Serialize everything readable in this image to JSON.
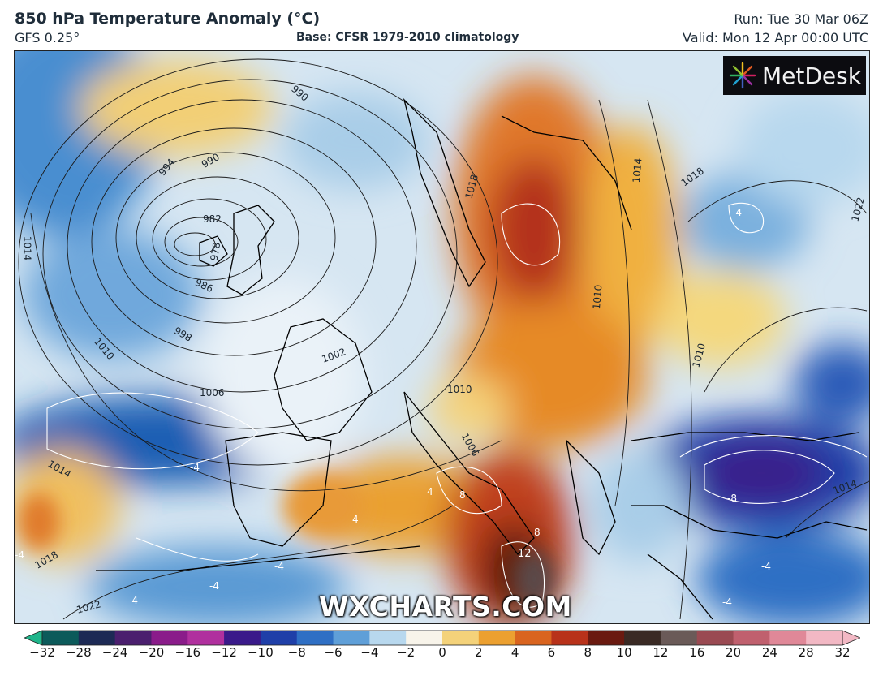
{
  "header": {
    "title": "850 hPa Temperature Anomaly (°C)",
    "model": "GFS 0.25°",
    "base": "Base: CFSR 1979-2010 climatology",
    "run": "Run: Tue 30 Mar 06Z",
    "valid": "Valid: Mon 12 Apr 00:00 UTC"
  },
  "logo": {
    "text": "MetDesk",
    "icon": "metdesk-starburst-icon"
  },
  "watermark": "WXCHARTS.COM",
  "isobar_labels": [
    "990",
    "994",
    "990",
    "982",
    "978",
    "986",
    "998",
    "1002",
    "1006",
    "1010",
    "1010",
    "1014",
    "1014",
    "1018",
    "1022",
    "1018",
    "1014",
    "1010",
    "1022",
    "1006",
    "1010",
    "1014",
    "1018",
    "1022",
    "1018",
    "994"
  ],
  "anomaly_labels": [
    "-4",
    "-4",
    "-4",
    "-4",
    "-4",
    "-4",
    "-8",
    "-4",
    "-4",
    "4",
    "4",
    "8",
    "8",
    "12"
  ],
  "colorbar": {
    "ticks": [
      "−32",
      "−28",
      "−24",
      "−20",
      "−16",
      "−12",
      "−10",
      "−8",
      "−6",
      "−4",
      "−2",
      "0",
      "2",
      "4",
      "6",
      "8",
      "10",
      "12",
      "16",
      "20",
      "24",
      "28",
      "32"
    ],
    "colors": [
      "#1fb58a",
      "#0c5a5a",
      "#1d2a55",
      "#4b1f6e",
      "#8a1c8a",
      "#b0309e",
      "#3a1a8a",
      "#1f3fa8",
      "#2f6fc4",
      "#5f9fd8",
      "#b8d8ee",
      "#f8f4ea",
      "#f4d27a",
      "#eca030",
      "#d9641f",
      "#b8321a",
      "#6a1a10",
      "#3a2a24",
      "#6a5a58",
      "#9a4a52",
      "#c0606e",
      "#e08898",
      "#f2b8c4"
    ]
  }
}
